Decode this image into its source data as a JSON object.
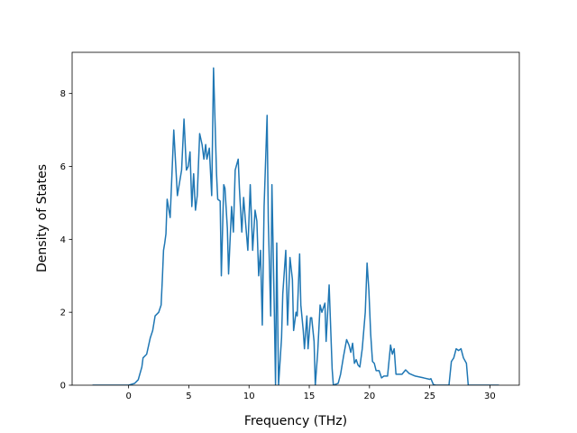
{
  "chart_data": {
    "type": "line",
    "x_label": "Frequency (THz)",
    "y_label": "Density of States",
    "x": [
      -3,
      0,
      0.5,
      0.8,
      1.1,
      1.2,
      1.5,
      1.8,
      2.0,
      2.2,
      2.5,
      2.7,
      2.8,
      2.9,
      3.0,
      3.1,
      3.2,
      3.45,
      3.75,
      4.05,
      4.3,
      4.4,
      4.6,
      4.8,
      4.95,
      5.1,
      5.25,
      5.4,
      5.55,
      5.7,
      5.9,
      6.1,
      6.25,
      6.4,
      6.5,
      6.7,
      6.9,
      7.05,
      7.3,
      7.4,
      7.6,
      7.7,
      7.9,
      8.0,
      8.2,
      8.3,
      8.55,
      8.7,
      8.85,
      9.1,
      9.2,
      9.4,
      9.55,
      9.7,
      9.9,
      10.1,
      10.3,
      10.5,
      10.65,
      10.8,
      10.95,
      11.1,
      11.25,
      11.5,
      11.6,
      11.8,
      11.9,
      12.1,
      12.2,
      12.3,
      12.45,
      12.7,
      12.8,
      13.05,
      13.2,
      13.4,
      13.6,
      13.7,
      13.9,
      14.0,
      14.2,
      14.3,
      14.5,
      14.6,
      14.8,
      14.9,
      15.1,
      15.2,
      15.4,
      15.5,
      15.7,
      15.9,
      16.05,
      16.3,
      16.4,
      16.65,
      16.9,
      17.0,
      17.4,
      17.6,
      17.85,
      18.1,
      18.3,
      18.45,
      18.6,
      18.75,
      18.9,
      19.05,
      19.2,
      19.4,
      19.65,
      19.8,
      19.95,
      20.1,
      20.25,
      20.4,
      20.55,
      20.8,
      21.0,
      21.2,
      21.5,
      21.75,
      21.9,
      22.05,
      22.2,
      22.4,
      22.7,
      23.0,
      23.3,
      23.8,
      24.5,
      25.0,
      25.1,
      25.3,
      25.5,
      26.6,
      26.8,
      27.0,
      27.2,
      27.4,
      27.6,
      27.8,
      28.05,
      28.2,
      30.75
    ],
    "values": [
      0,
      0,
      0.05,
      0.15,
      0.5,
      0.75,
      0.85,
      1.3,
      1.5,
      1.9,
      2.0,
      2.2,
      2.9,
      3.7,
      3.9,
      4.15,
      5.1,
      4.6,
      7.0,
      5.2,
      5.7,
      5.9,
      7.3,
      5.9,
      6.0,
      6.4,
      4.9,
      5.8,
      4.8,
      5.2,
      6.9,
      6.6,
      6.2,
      6.6,
      6.2,
      6.5,
      5.2,
      8.7,
      5.8,
      5.1,
      5.05,
      3.0,
      5.5,
      5.4,
      4.3,
      3.05,
      4.9,
      4.2,
      5.9,
      6.2,
      5.4,
      4.2,
      5.15,
      4.5,
      3.7,
      5.5,
      3.7,
      4.8,
      4.5,
      3.0,
      3.7,
      1.65,
      4.9,
      7.4,
      4.5,
      1.9,
      5.5,
      2.0,
      0,
      3.9,
      0,
      1.3,
      2.5,
      3.7,
      1.65,
      3.5,
      2.9,
      1.5,
      2.0,
      1.9,
      3.6,
      2.2,
      1.5,
      1.0,
      1.9,
      1.0,
      1.85,
      1.85,
      1.2,
      0,
      0.9,
      2.2,
      2.0,
      2.25,
      1.2,
      2.75,
      0.45,
      0,
      0.05,
      0.3,
      0.8,
      1.25,
      1.1,
      0.9,
      1.15,
      0.6,
      0.7,
      0.55,
      0.5,
      1.0,
      2.0,
      3.35,
      2.6,
      1.4,
      0.65,
      0.6,
      0.4,
      0.4,
      0.2,
      0.25,
      0.25,
      1.1,
      0.85,
      1.0,
      0.3,
      0.3,
      0.3,
      0.42,
      0.32,
      0.25,
      0.2,
      0.16,
      0.18,
      0.02,
      0,
      0,
      0.65,
      0.75,
      1.0,
      0.95,
      1.0,
      0.75,
      0.6,
      0,
      0
    ],
    "color": "#1f77b4",
    "xlim": [
      -4.69,
      32.44
    ],
    "xticks": [
      0,
      5,
      10,
      15,
      20,
      25,
      30
    ],
    "ylim": [
      0,
      9.13
    ],
    "yticks": [
      0,
      2,
      4,
      6,
      8
    ],
    "grid": false
  }
}
